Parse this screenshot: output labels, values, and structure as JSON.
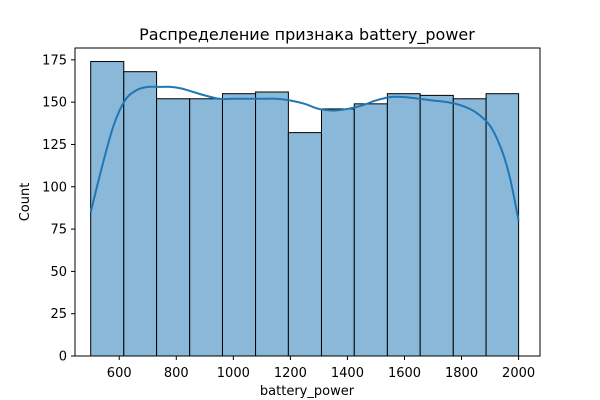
{
  "chart_data": {
    "type": "bar",
    "subtype": "histogram-with-kde",
    "title": "Распределение признака battery_power",
    "xlabel": "battery_power",
    "ylabel": "Count",
    "xlim": [
      445,
      2075
    ],
    "ylim": [
      0,
      182
    ],
    "xticks": [
      600,
      800,
      1000,
      1200,
      1400,
      1600,
      1800,
      2000
    ],
    "yticks": [
      0,
      25,
      50,
      75,
      100,
      125,
      150,
      175
    ],
    "grid": false,
    "legend": "none",
    "bins": [
      {
        "x0": 500,
        "x1": 616,
        "count": 174
      },
      {
        "x0": 616,
        "x1": 731,
        "count": 168
      },
      {
        "x0": 731,
        "x1": 847,
        "count": 152
      },
      {
        "x0": 847,
        "x1": 962,
        "count": 152
      },
      {
        "x0": 962,
        "x1": 1078,
        "count": 155
      },
      {
        "x0": 1078,
        "x1": 1193,
        "count": 156
      },
      {
        "x0": 1193,
        "x1": 1309,
        "count": 132
      },
      {
        "x0": 1309,
        "x1": 1424,
        "count": 146
      },
      {
        "x0": 1424,
        "x1": 1540,
        "count": 149
      },
      {
        "x0": 1540,
        "x1": 1655,
        "count": 155
      },
      {
        "x0": 1655,
        "x1": 1771,
        "count": 154
      },
      {
        "x0": 1771,
        "x1": 1886,
        "count": 152
      },
      {
        "x0": 1886,
        "x1": 2000,
        "count": 155
      }
    ],
    "kde": {
      "x": [
        500,
        540,
        580,
        620,
        660,
        700,
        740,
        780,
        820,
        860,
        900,
        950,
        1000,
        1050,
        1100,
        1150,
        1200,
        1250,
        1300,
        1350,
        1400,
        1450,
        1500,
        1550,
        1600,
        1650,
        1700,
        1750,
        1800,
        1850,
        1900,
        1940,
        1970,
        2000
      ],
      "y": [
        85,
        112,
        136,
        151,
        157,
        159,
        159,
        159,
        158,
        156,
        154,
        152,
        152,
        152,
        152,
        152,
        151,
        149,
        146,
        145,
        146,
        148,
        151,
        153,
        153,
        152,
        151,
        150,
        148,
        144,
        136,
        122,
        105,
        80
      ]
    },
    "colors": {
      "bar_fill": "#8ab8d9",
      "bar_edge": "#000000",
      "kde_line": "#1f77b4"
    }
  }
}
